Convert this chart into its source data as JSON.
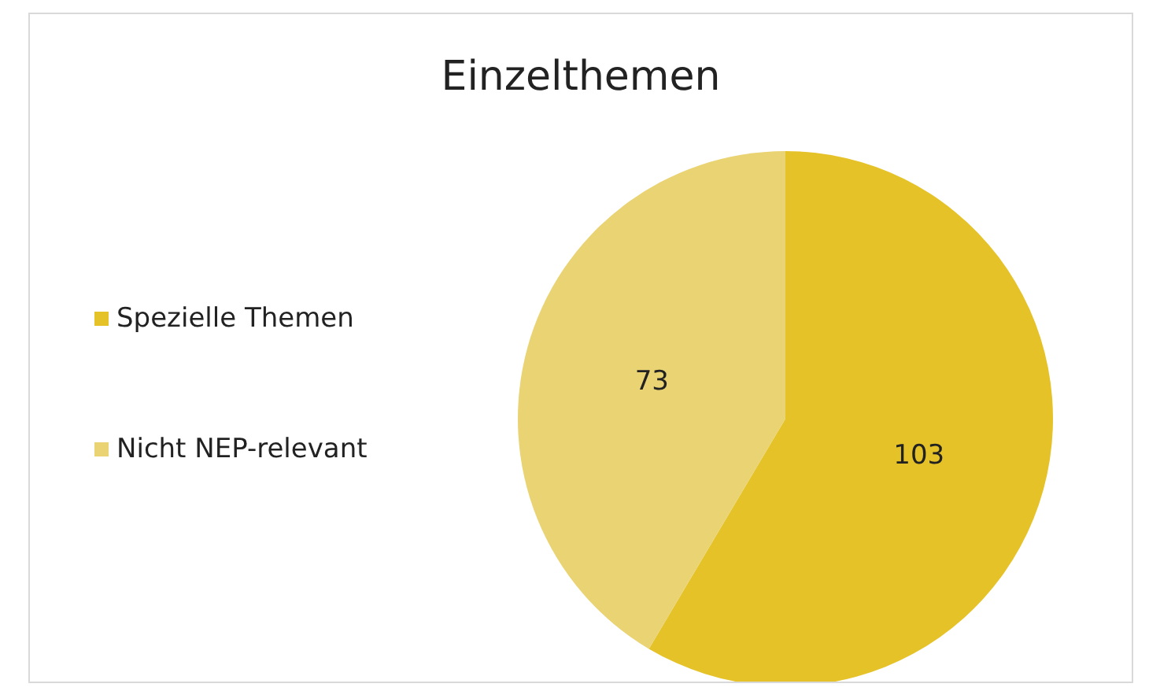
{
  "chart_data": {
    "type": "pie",
    "title": "Einzelthemen",
    "categories": [
      "Spezielle Themen",
      "Nicht NEP-relevant"
    ],
    "values": [
      103,
      73
    ],
    "colors": [
      "#e6c229",
      "#e9d373"
    ],
    "data_labels": true,
    "legend": "left"
  }
}
